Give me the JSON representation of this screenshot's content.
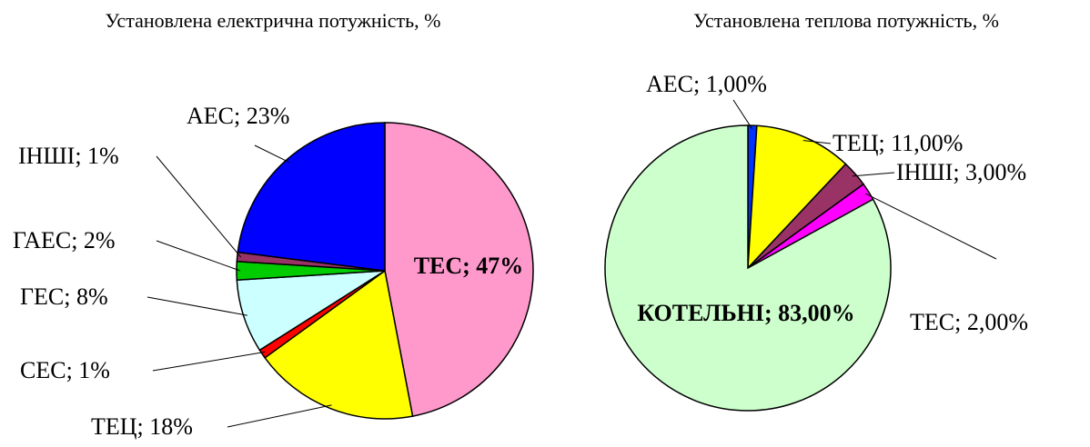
{
  "chart_data": [
    {
      "type": "pie",
      "title": "Установлена електрична потужність, %",
      "labels": [
        "ТЕС; 47%",
        "ТЕЦ; 18%",
        "СЕС; 1%",
        "ГЕС; 8%",
        "ГАЕС; 2%",
        "ІНШІ; 1%",
        "АЕС; 23%"
      ],
      "values": [
        47,
        18,
        1,
        8,
        2,
        1,
        23
      ],
      "colors": [
        "#ff99cc",
        "#ffff00",
        "#ff0000",
        "#ccffff",
        "#00cc00",
        "#993366",
        "#0000ff"
      ]
    },
    {
      "type": "pie",
      "title": "Установлена теплова потужність, %",
      "labels": [
        "АЕС; 1,00%",
        "ТЕЦ; 11,00%",
        "ІНШІ; 3,00%",
        "ТЕС; 2,00%",
        "КОТЕЛЬНІ; 83,00%"
      ],
      "values": [
        1,
        11,
        3,
        2,
        83
      ],
      "colors": [
        "#0033ff",
        "#ffff00",
        "#993366",
        "#ff00ff",
        "#ccffcc"
      ]
    }
  ]
}
